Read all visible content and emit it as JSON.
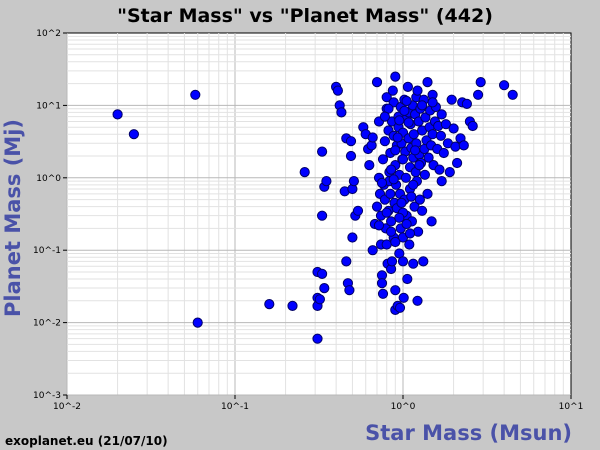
{
  "chart_data": {
    "type": "scatter",
    "title": "\"Star Mass\"  vs \"Planet Mass\" (442)",
    "xlabel": "Star Mass (Msun)",
    "ylabel": "Planet Mass (Mj)",
    "x_scale": "log",
    "y_scale": "log",
    "xlim": [
      0.01,
      10
    ],
    "ylim": [
      0.001,
      100
    ],
    "x_ticks": [
      "10^-2",
      "10^-1",
      "10^0",
      "10^1"
    ],
    "y_ticks": [
      "10^2",
      "10^1",
      "10^0",
      "10^-1",
      "10^-2",
      "10^-3"
    ],
    "grid": true,
    "legend": "none",
    "marker_color": "#0000ff",
    "marker_edge": "#000066",
    "points": [
      [
        0.02,
        7.5
      ],
      [
        0.025,
        4.0
      ],
      [
        0.058,
        14.0
      ],
      [
        0.06,
        0.01
      ],
      [
        0.16,
        0.018
      ],
      [
        0.22,
        0.017
      ],
      [
        0.26,
        1.2
      ],
      [
        0.31,
        0.05
      ],
      [
        0.31,
        0.022
      ],
      [
        0.31,
        0.017
      ],
      [
        0.31,
        0.006
      ],
      [
        0.32,
        0.021
      ],
      [
        0.33,
        0.047
      ],
      [
        0.34,
        0.03
      ],
      [
        0.33,
        2.3
      ],
      [
        0.34,
        0.75
      ],
      [
        0.35,
        0.9
      ],
      [
        0.33,
        0.3
      ],
      [
        0.4,
        18.0
      ],
      [
        0.41,
        16.0
      ],
      [
        0.42,
        10.0
      ],
      [
        0.43,
        8.0
      ],
      [
        0.45,
        0.65
      ],
      [
        0.46,
        0.07
      ],
      [
        0.47,
        0.035
      ],
      [
        0.48,
        0.028
      ],
      [
        0.46,
        3.5
      ],
      [
        0.49,
        3.2
      ],
      [
        0.49,
        2.0
      ],
      [
        0.5,
        0.7
      ],
      [
        0.51,
        0.9
      ],
      [
        0.52,
        0.3
      ],
      [
        0.54,
        0.35
      ],
      [
        0.5,
        0.15
      ],
      [
        0.58,
        5.0
      ],
      [
        0.6,
        4.0
      ],
      [
        0.62,
        2.5
      ],
      [
        0.63,
        1.5
      ],
      [
        0.65,
        2.8
      ],
      [
        0.66,
        3.6
      ],
      [
        0.66,
        0.1
      ],
      [
        0.68,
        0.23
      ],
      [
        0.7,
        0.4
      ],
      [
        0.7,
        21.0
      ],
      [
        0.72,
        6.0
      ],
      [
        0.72,
        1.0
      ],
      [
        0.73,
        0.6
      ],
      [
        0.74,
        0.3
      ],
      [
        0.74,
        0.12
      ],
      [
        0.75,
        0.045
      ],
      [
        0.75,
        0.035
      ],
      [
        0.76,
        0.025
      ],
      [
        0.76,
        1.8
      ],
      [
        0.77,
        0.8
      ],
      [
        0.78,
        3.2
      ],
      [
        0.78,
        0.5
      ],
      [
        0.79,
        0.2
      ],
      [
        0.8,
        9.0
      ],
      [
        0.8,
        13.0
      ],
      [
        0.8,
        0.12
      ],
      [
        0.81,
        0.065
      ],
      [
        0.82,
        4.5
      ],
      [
        0.82,
        0.35
      ],
      [
        0.83,
        1.2
      ],
      [
        0.83,
        0.9
      ],
      [
        0.84,
        2.2
      ],
      [
        0.84,
        0.6
      ],
      [
        0.85,
        0.25
      ],
      [
        0.85,
        0.055
      ],
      [
        0.86,
        0.07
      ],
      [
        0.86,
        6.0
      ],
      [
        0.87,
        16.0
      ],
      [
        0.88,
        11.0
      ],
      [
        0.88,
        3.8
      ],
      [
        0.88,
        0.15
      ],
      [
        0.89,
        0.45
      ],
      [
        0.9,
        25.0
      ],
      [
        0.9,
        1.5
      ],
      [
        0.9,
        0.015
      ],
      [
        0.9,
        0.028
      ],
      [
        0.91,
        0.8
      ],
      [
        0.92,
        2.8
      ],
      [
        0.92,
        0.38
      ],
      [
        0.93,
        0.017
      ],
      [
        0.94,
        7.0
      ],
      [
        0.94,
        5.0
      ],
      [
        0.95,
        1.1
      ],
      [
        0.95,
        0.09
      ],
      [
        0.96,
        0.6
      ],
      [
        0.96,
        0.016
      ],
      [
        0.97,
        0.2
      ],
      [
        0.97,
        9.5
      ],
      [
        0.98,
        3.0
      ],
      [
        0.99,
        1.8
      ],
      [
        1.0,
        4.2
      ],
      [
        1.0,
        0.15
      ],
      [
        1.0,
        0.07
      ],
      [
        1.01,
        0.022
      ],
      [
        1.02,
        12.0
      ],
      [
        1.02,
        0.5
      ],
      [
        1.03,
        2.3
      ],
      [
        1.04,
        1.0
      ],
      [
        1.05,
        6.5
      ],
      [
        1.05,
        0.3
      ],
      [
        1.06,
        0.04
      ],
      [
        1.07,
        18.0
      ],
      [
        1.08,
        8.0
      ],
      [
        1.08,
        3.5
      ],
      [
        1.09,
        0.12
      ],
      [
        1.1,
        1.4
      ],
      [
        1.1,
        0.7
      ],
      [
        1.11,
        5.5
      ],
      [
        1.12,
        2.6
      ],
      [
        1.13,
        0.25
      ],
      [
        1.14,
        10.0
      ],
      [
        1.15,
        0.065
      ],
      [
        1.15,
        1.9
      ],
      [
        1.16,
        4.0
      ],
      [
        1.17,
        0.4
      ],
      [
        1.18,
        7.5
      ],
      [
        1.19,
        1.2
      ],
      [
        1.2,
        13.0
      ],
      [
        1.2,
        3.0
      ],
      [
        1.21,
        0.9
      ],
      [
        1.22,
        0.02
      ],
      [
        1.23,
        0.18
      ],
      [
        1.24,
        6.0
      ],
      [
        1.25,
        2.1
      ],
      [
        1.26,
        0.5
      ],
      [
        1.27,
        9.0
      ],
      [
        1.28,
        1.6
      ],
      [
        1.3,
        4.5
      ],
      [
        1.3,
        0.35
      ],
      [
        1.32,
        0.07
      ],
      [
        1.33,
        12.0
      ],
      [
        1.34,
        2.5
      ],
      [
        1.35,
        1.1
      ],
      [
        1.36,
        6.8
      ],
      [
        1.38,
        3.3
      ],
      [
        1.4,
        21.0
      ],
      [
        1.4,
        0.6
      ],
      [
        1.42,
        1.9
      ],
      [
        1.44,
        5.0
      ],
      [
        1.45,
        8.5
      ],
      [
        1.47,
        2.8
      ],
      [
        1.48,
        0.25
      ],
      [
        1.5,
        4.0
      ],
      [
        1.5,
        14.0
      ],
      [
        1.52,
        1.5
      ],
      [
        1.55,
        6.0
      ],
      [
        1.57,
        9.5
      ],
      [
        1.6,
        2.5
      ],
      [
        1.62,
        5.2
      ],
      [
        1.65,
        1.3
      ],
      [
        1.68,
        3.8
      ],
      [
        1.7,
        7.5
      ],
      [
        1.7,
        0.9
      ],
      [
        1.75,
        2.2
      ],
      [
        1.8,
        5.5
      ],
      [
        1.85,
        3.0
      ],
      [
        1.9,
        1.2
      ],
      [
        1.95,
        12.0
      ],
      [
        2.0,
        4.8
      ],
      [
        2.05,
        2.7
      ],
      [
        2.1,
        1.6
      ],
      [
        2.2,
        3.5
      ],
      [
        2.25,
        11.0
      ],
      [
        2.3,
        2.8
      ],
      [
        2.4,
        10.5
      ],
      [
        2.5,
        6.0
      ],
      [
        2.6,
        5.2
      ],
      [
        2.8,
        14.0
      ],
      [
        2.9,
        21.0
      ],
      [
        4.0,
        19.0
      ],
      [
        4.5,
        14.0
      ],
      [
        0.95,
        6.2
      ],
      [
        1.05,
        11.5
      ],
      [
        0.9,
        2.4
      ],
      [
        1.15,
        0.8
      ],
      [
        1.25,
        1.5
      ],
      [
        0.85,
        1.3
      ],
      [
        1.0,
        1.8
      ],
      [
        0.93,
        3.6
      ],
      [
        1.08,
        5.8
      ],
      [
        1.18,
        2.4
      ],
      [
        0.98,
        0.45
      ],
      [
        1.12,
        0.55
      ],
      [
        0.88,
        0.95
      ],
      [
        1.02,
        8.4
      ],
      [
        0.82,
        9.0
      ],
      [
        0.78,
        7.0
      ],
      [
        1.3,
        10.0
      ],
      [
        1.22,
        16.0
      ],
      [
        1.5,
        11.0
      ],
      [
        0.75,
        0.85
      ],
      [
        0.72,
        0.22
      ],
      [
        0.8,
        0.33
      ],
      [
        1.05,
        0.23
      ],
      [
        1.0,
        0.33
      ],
      [
        0.95,
        0.28
      ],
      [
        0.85,
        0.18
      ],
      [
        0.9,
        0.13
      ],
      [
        1.1,
        0.17
      ]
    ]
  },
  "credit": "exoplanet.eu (21/07/10)"
}
